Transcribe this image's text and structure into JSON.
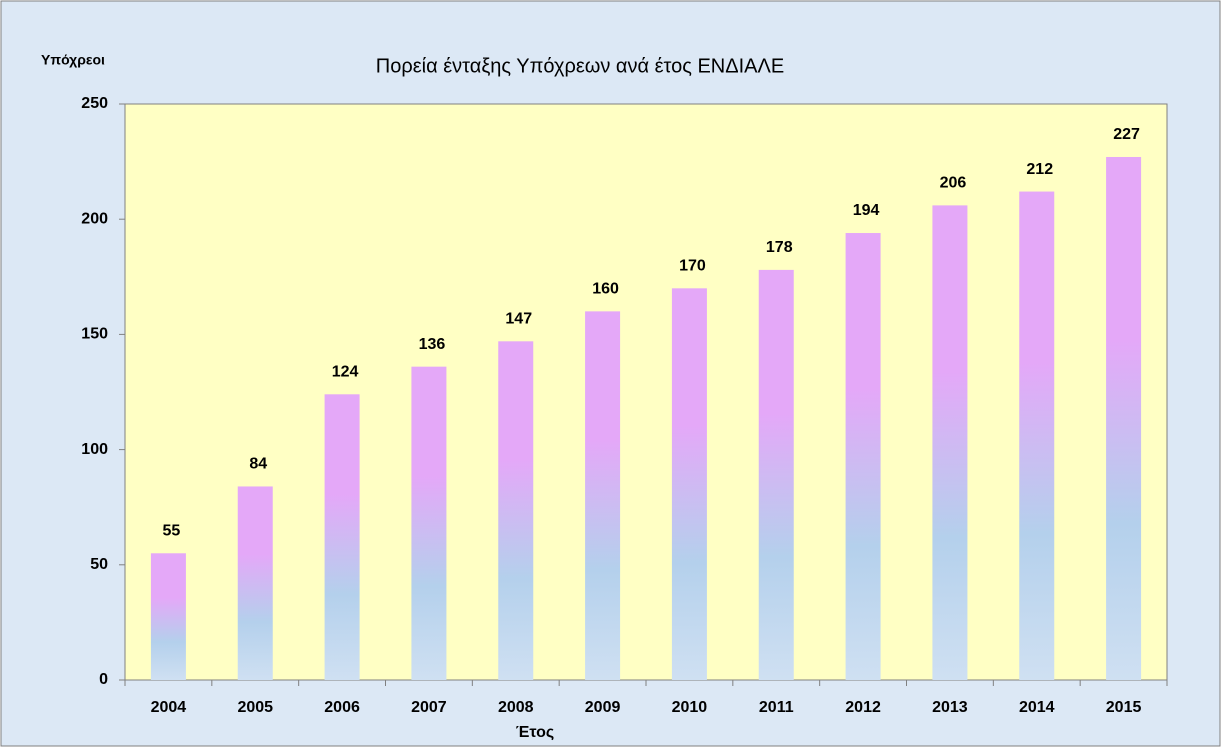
{
  "chart_data": {
    "type": "bar",
    "title": "Πορεία ένταξης Υπόχρεων ανά έτος ΕΝΔΙΑΛΕ",
    "y_label": "Υπόχρεοι",
    "x_label": "Έτος",
    "categories": [
      "2004",
      "2005",
      "2006",
      "2007",
      "2008",
      "2009",
      "2010",
      "2011",
      "2012",
      "2013",
      "2014",
      "2015"
    ],
    "values": [
      55,
      84,
      124,
      136,
      147,
      160,
      170,
      178,
      194,
      206,
      212,
      227
    ],
    "color": "#e4a8f8",
    "ylim": [
      0,
      250
    ],
    "yticks": [
      0,
      50,
      100,
      150,
      200,
      250
    ],
    "grid": false
  }
}
